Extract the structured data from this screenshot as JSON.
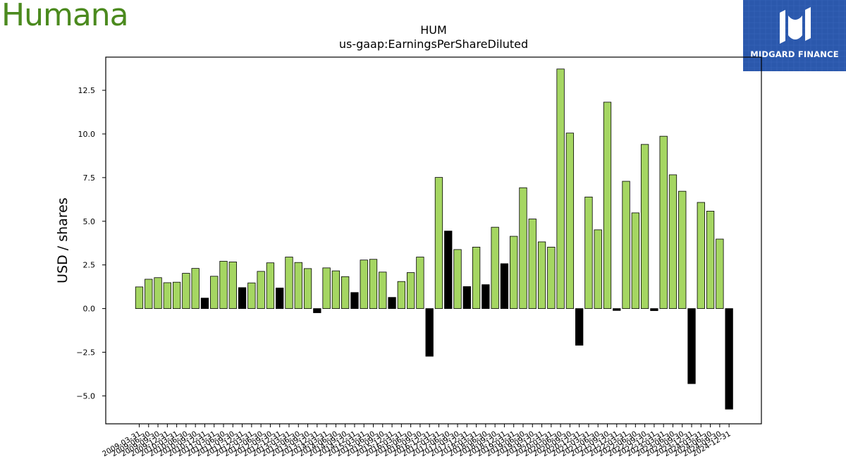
{
  "brand": {
    "logo_text": "Humana"
  },
  "watermark": {
    "text": "MIDGARD FINANCE"
  },
  "colors": {
    "positive": "#a5d662",
    "negative": "#000000",
    "brand_green": "#4b8a1e",
    "badge_blue": "#2b58ac"
  },
  "chart_data": {
    "type": "bar",
    "title": "HUM",
    "subtitle": "us-gaap:EarningsPerShareDiluted",
    "xlabel": "",
    "ylabel": "USD / shares",
    "ylim": [
      -6.6,
      14.4
    ],
    "yticks": [
      "−5.0",
      "−2.5",
      "0.0",
      "2.5",
      "5.0",
      "7.5",
      "10.0",
      "12.5"
    ],
    "ytick_values": [
      -5.0,
      -2.5,
      0.0,
      2.5,
      5.0,
      7.5,
      10.0,
      12.5
    ],
    "grid": false,
    "categories": [
      "2009-03-31",
      "2009-06-30",
      "2009-09-30",
      "2009-12-31",
      "2010-03-31",
      "2010-06-30",
      "2010-09-30",
      "2010-12-31",
      "2011-03-31",
      "2011-06-30",
      "2011-09-30",
      "2011-12-31",
      "2012-03-31",
      "2012-06-30",
      "2012-09-30",
      "2012-12-31",
      "2013-03-31",
      "2013-06-30",
      "2013-09-30",
      "2013-12-31",
      "2014-03-31",
      "2014-06-30",
      "2014-09-30",
      "2014-12-31",
      "2015-03-31",
      "2015-06-30",
      "2015-09-30",
      "2015-12-31",
      "2016-03-31",
      "2016-06-30",
      "2016-09-30",
      "2016-12-31",
      "2017-03-31",
      "2017-06-30",
      "2017-09-30",
      "2017-12-31",
      "2018-03-31",
      "2018-06-30",
      "2018-09-30",
      "2018-12-31",
      "2019-03-31",
      "2019-06-30",
      "2019-09-30",
      "2019-12-31",
      "2020-03-31",
      "2020-06-30",
      "2020-09-30",
      "2020-12-31",
      "2021-03-31",
      "2021-06-30",
      "2021-09-30",
      "2021-12-31",
      "2022-03-31",
      "2022-06-30",
      "2022-09-30",
      "2022-12-31",
      "2023-03-31",
      "2023-06-30",
      "2023-09-30",
      "2023-12-31",
      "2024-03-31",
      "2024-06-30",
      "2024-09-30",
      "2024-12-31"
    ],
    "values": [
      1.24,
      1.68,
      1.77,
      1.48,
      1.51,
      2.02,
      2.3,
      0.6,
      1.85,
      2.71,
      2.67,
      1.2,
      1.47,
      2.13,
      2.62,
      1.18,
      2.95,
      2.64,
      2.29,
      -0.24,
      2.33,
      2.16,
      1.83,
      0.92,
      2.78,
      2.82,
      2.09,
      0.64,
      1.55,
      2.06,
      2.95,
      -2.73,
      7.51,
      4.44,
      3.38,
      1.26,
      3.52,
      1.37,
      4.66,
      2.57,
      4.14,
      6.92,
      5.13,
      3.82,
      3.52,
      13.72,
      10.05,
      -2.1,
      6.39,
      4.51,
      11.82,
      -0.11,
      7.29,
      5.48,
      9.4,
      -0.12,
      9.87,
      7.66,
      6.72,
      -4.3,
      6.08,
      5.58,
      3.98,
      -5.76
    ]
  }
}
